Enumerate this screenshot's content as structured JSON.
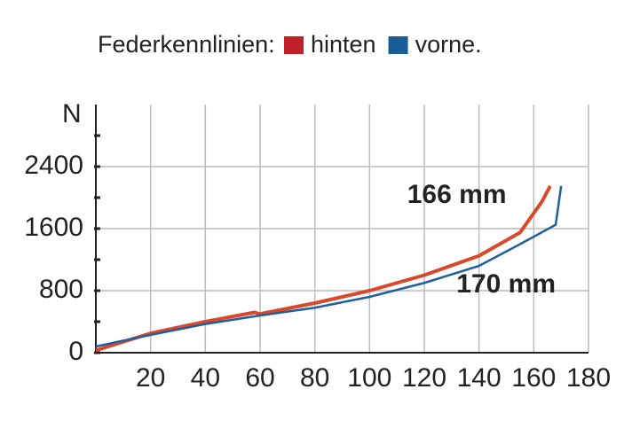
{
  "chart_data": {
    "type": "line",
    "title": "Federkennlinien:",
    "y_label": "N",
    "series": [
      {
        "name": "hinten",
        "color": "#d9482b",
        "x": [
          0,
          20,
          40,
          58,
          60,
          80,
          100,
          120,
          140,
          155,
          160,
          163,
          166
        ],
        "values": [
          30,
          250,
          400,
          520,
          500,
          640,
          800,
          1000,
          1250,
          1550,
          1800,
          1950,
          2150
        ]
      },
      {
        "name": "vorne.",
        "color": "#1f5fa0",
        "x": [
          0,
          20,
          40,
          60,
          80,
          100,
          120,
          140,
          155,
          168,
          170
        ],
        "values": [
          80,
          230,
          370,
          480,
          580,
          720,
          900,
          1120,
          1400,
          1650,
          2150
        ]
      }
    ],
    "legend_colors": [
      "#c0202a",
      "#1a5c98"
    ],
    "annotations": [
      {
        "text": "166 mm",
        "x": 150,
        "y": 2020
      },
      {
        "text": "170 mm",
        "x": 168,
        "y": 870
      }
    ],
    "xlim": [
      0,
      180
    ],
    "xticks": [
      20,
      40,
      60,
      80,
      100,
      120,
      140,
      160,
      180
    ],
    "ylim": [
      0,
      3200
    ],
    "yticks": [
      0,
      800,
      1600,
      2400
    ],
    "yminor": [
      400,
      1200,
      2000,
      2800
    ],
    "grid": true
  }
}
